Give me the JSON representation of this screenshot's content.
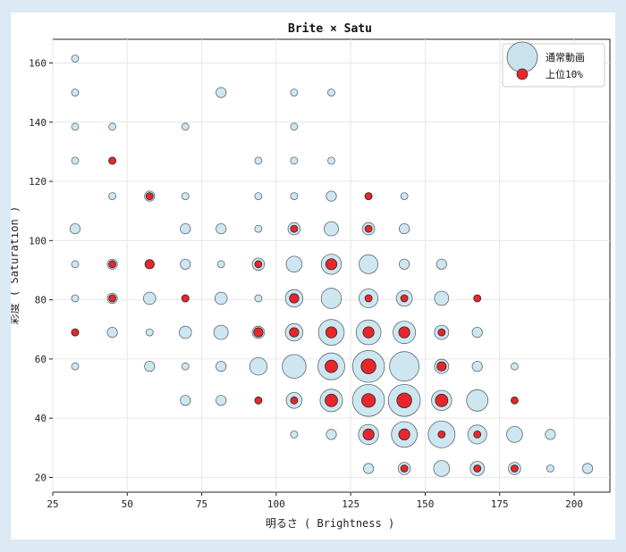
{
  "chart_data": {
    "type": "scatter",
    "title": "Brite × Satu",
    "xlabel": "明るさ ( Brightness )",
    "ylabel": "彩度 ( Saturation )",
    "xlim": [
      25,
      212
    ],
    "ylim": [
      15,
      168
    ],
    "xticks": [
      25,
      50,
      75,
      100,
      125,
      150,
      175,
      200
    ],
    "yticks": [
      20,
      40,
      60,
      80,
      100,
      120,
      140,
      160
    ],
    "grid": true,
    "legend_position": "top-right",
    "series": [
      {
        "name": "通常動画",
        "color": "#c9e3ee",
        "points": [
          [
            32.5,
            161.5,
            1
          ],
          [
            32.5,
            150,
            1
          ],
          [
            32.5,
            138.5,
            1
          ],
          [
            32.5,
            127,
            1
          ],
          [
            32.5,
            104,
            2
          ],
          [
            32.5,
            92,
            1
          ],
          [
            32.5,
            80.5,
            1
          ],
          [
            32.5,
            69,
            1
          ],
          [
            32.5,
            57.5,
            1
          ],
          [
            45,
            138.5,
            1
          ],
          [
            45,
            127,
            1
          ],
          [
            45,
            115,
            1
          ],
          [
            45,
            92,
            2
          ],
          [
            45,
            80.5,
            2
          ],
          [
            45,
            69,
            2
          ],
          [
            57.5,
            115,
            2
          ],
          [
            57.5,
            92,
            1
          ],
          [
            57.5,
            80.5,
            3
          ],
          [
            57.5,
            69,
            1
          ],
          [
            57.5,
            57.5,
            2
          ],
          [
            69.5,
            138.5,
            1
          ],
          [
            69.5,
            115,
            1
          ],
          [
            69.5,
            104,
            2
          ],
          [
            69.5,
            92,
            2
          ],
          [
            69.5,
            80.5,
            1
          ],
          [
            69.5,
            69,
            3
          ],
          [
            69.5,
            57.5,
            1
          ],
          [
            69.5,
            46,
            2
          ],
          [
            81.5,
            150,
            2
          ],
          [
            81.5,
            104,
            2
          ],
          [
            81.5,
            92,
            1
          ],
          [
            81.5,
            80.5,
            3
          ],
          [
            81.5,
            69,
            4
          ],
          [
            81.5,
            57.5,
            2
          ],
          [
            81.5,
            46,
            2
          ],
          [
            94,
            127,
            1
          ],
          [
            94,
            115,
            1
          ],
          [
            94,
            104,
            1
          ],
          [
            94,
            92,
            3
          ],
          [
            94,
            80.5,
            1
          ],
          [
            94,
            69,
            3
          ],
          [
            94,
            57.5,
            6
          ],
          [
            94,
            46,
            1
          ],
          [
            106,
            150,
            1
          ],
          [
            106,
            138.5,
            1
          ],
          [
            106,
            127,
            1
          ],
          [
            106,
            115,
            1
          ],
          [
            106,
            104,
            3
          ],
          [
            106,
            92,
            5
          ],
          [
            106,
            80.5,
            6
          ],
          [
            106,
            69,
            6
          ],
          [
            106,
            57.5,
            11
          ],
          [
            106,
            46,
            5
          ],
          [
            106,
            34.5,
            1
          ],
          [
            118.5,
            150,
            1
          ],
          [
            118.5,
            127,
            1
          ],
          [
            118.5,
            115,
            2
          ],
          [
            118.5,
            104,
            4
          ],
          [
            118.5,
            92,
            8
          ],
          [
            118.5,
            80.5,
            8
          ],
          [
            118.5,
            69,
            13
          ],
          [
            118.5,
            57.5,
            14
          ],
          [
            118.5,
            46,
            10
          ],
          [
            118.5,
            34.5,
            2
          ],
          [
            131,
            115,
            1
          ],
          [
            131,
            104,
            3
          ],
          [
            131,
            92,
            7
          ],
          [
            131,
            80.5,
            7
          ],
          [
            131,
            69,
            12
          ],
          [
            131,
            57.5,
            20
          ],
          [
            131,
            46,
            20
          ],
          [
            131,
            34.5,
            8
          ],
          [
            131,
            23,
            2
          ],
          [
            143,
            115,
            1
          ],
          [
            143,
            104,
            2
          ],
          [
            143,
            92,
            2
          ],
          [
            143,
            80.5,
            5
          ],
          [
            143,
            69,
            10
          ],
          [
            143,
            57.5,
            17
          ],
          [
            143,
            46,
            20
          ],
          [
            143,
            34.5,
            13
          ],
          [
            143,
            23,
            3
          ],
          [
            155.5,
            92,
            2
          ],
          [
            155.5,
            80.5,
            4
          ],
          [
            155.5,
            69,
            4
          ],
          [
            155.5,
            57.5,
            4
          ],
          [
            155.5,
            46,
            8
          ],
          [
            155.5,
            34.5,
            14
          ],
          [
            155.5,
            23,
            5
          ],
          [
            167.5,
            69,
            2
          ],
          [
            167.5,
            57.5,
            2
          ],
          [
            167.5,
            46,
            9
          ],
          [
            167.5,
            34.5,
            7
          ],
          [
            167.5,
            23,
            4
          ],
          [
            180,
            57.5,
            1
          ],
          [
            180,
            34.5,
            5
          ],
          [
            180,
            23,
            3
          ],
          [
            192,
            34.5,
            2
          ],
          [
            192,
            23,
            1
          ],
          [
            204.5,
            23,
            2
          ]
        ]
      },
      {
        "name": "上位10%",
        "color": "#e8262b",
        "points": [
          [
            32.5,
            69,
            1
          ],
          [
            45,
            127,
            1
          ],
          [
            45,
            92,
            1
          ],
          [
            45,
            80.5,
            1
          ],
          [
            57.5,
            115,
            1
          ],
          [
            57.5,
            92,
            2
          ],
          [
            69.5,
            80.5,
            1
          ],
          [
            94,
            92,
            1
          ],
          [
            94,
            69,
            2
          ],
          [
            94,
            46,
            1
          ],
          [
            106,
            104,
            1
          ],
          [
            106,
            80.5,
            2
          ],
          [
            106,
            69,
            2
          ],
          [
            106,
            46,
            1
          ],
          [
            118.5,
            92,
            3
          ],
          [
            118.5,
            69,
            3
          ],
          [
            118.5,
            57.5,
            4
          ],
          [
            118.5,
            46,
            4
          ],
          [
            131,
            115,
            1
          ],
          [
            131,
            104,
            1
          ],
          [
            131,
            80.5,
            1
          ],
          [
            131,
            69,
            3
          ],
          [
            131,
            57.5,
            6
          ],
          [
            131,
            46,
            5
          ],
          [
            131,
            34.5,
            3
          ],
          [
            143,
            80.5,
            1
          ],
          [
            143,
            69,
            3
          ],
          [
            143,
            46,
            6
          ],
          [
            143,
            34.5,
            3
          ],
          [
            143,
            23,
            1
          ],
          [
            155.5,
            69,
            1
          ],
          [
            155.5,
            57.5,
            2
          ],
          [
            155.5,
            46,
            4
          ],
          [
            155.5,
            34.5,
            1
          ],
          [
            167.5,
            80.5,
            1
          ],
          [
            167.5,
            34.5,
            1
          ],
          [
            167.5,
            23,
            1
          ],
          [
            180,
            46,
            1
          ],
          [
            180,
            23,
            1
          ]
        ]
      }
    ]
  }
}
